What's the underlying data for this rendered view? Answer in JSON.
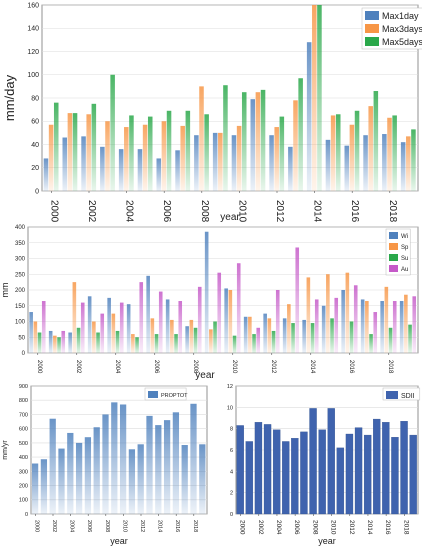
{
  "chart_data": [
    {
      "type": "bar",
      "x": [
        2000,
        2001,
        2002,
        2003,
        2004,
        2005,
        2006,
        2007,
        2008,
        2009,
        2010,
        2011,
        2012,
        2013,
        2014,
        2015,
        2016,
        2017,
        2018,
        2019
      ],
      "series": [
        {
          "name": "Max1day",
          "values": [
            28,
            46,
            47,
            38,
            36,
            36,
            28,
            35,
            48,
            50,
            48,
            79,
            48,
            38,
            128,
            44,
            39,
            48,
            49,
            42
          ]
        },
        {
          "name": "Max3days",
          "values": [
            57,
            67,
            66,
            60,
            55,
            57,
            60,
            56,
            90,
            50,
            56,
            85,
            55,
            78,
            160,
            65,
            57,
            73,
            63,
            47
          ]
        },
        {
          "name": "Max5days",
          "values": [
            76,
            67,
            75,
            100,
            65,
            64,
            69,
            69,
            66,
            91,
            85,
            87,
            64,
            97,
            160,
            66,
            69,
            86,
            65,
            53
          ]
        }
      ],
      "ylabel": "mm/day",
      "xlabel": "year",
      "ylim": [
        0,
        160
      ],
      "yticks": [
        0,
        20,
        40,
        60,
        80,
        100,
        120,
        140,
        160
      ],
      "xticks": [
        "2000",
        "2002",
        "2004",
        "2006",
        "2008",
        "2010",
        "2012",
        "2014",
        "2016",
        "2018"
      ],
      "legend": "top-right",
      "colors": {
        "Max1day": "#4f81bd",
        "Max3days": "#f79646",
        "Max5days": "#2aa84a"
      },
      "grid": true
    },
    {
      "type": "bar",
      "x": [
        2000,
        2001,
        2002,
        2003,
        2004,
        2005,
        2006,
        2007,
        2008,
        2009,
        2010,
        2011,
        2012,
        2013,
        2014,
        2015,
        2016,
        2017,
        2018,
        2019
      ],
      "series": [
        {
          "name": "Wi",
          "values": [
            130,
            70,
            65,
            180,
            175,
            155,
            245,
            170,
            85,
            385,
            205,
            115,
            125,
            110,
            105,
            150,
            200,
            170,
            165,
            165
          ]
        },
        {
          "name": "Sp",
          "values": [
            100,
            55,
            225,
            100,
            125,
            60,
            110,
            105,
            105,
            75,
            200,
            115,
            110,
            155,
            240,
            250,
            255,
            165,
            210,
            185
          ]
        },
        {
          "name": "Su",
          "values": [
            65,
            50,
            80,
            65,
            70,
            50,
            60,
            60,
            80,
            100,
            55,
            60,
            70,
            95,
            95,
            110,
            100,
            60,
            80,
            90
          ]
        },
        {
          "name": "Au",
          "values": [
            165,
            70,
            160,
            125,
            160,
            225,
            195,
            165,
            210,
            255,
            285,
            80,
            200,
            335,
            170,
            175,
            215,
            130,
            165,
            180
          ]
        }
      ],
      "ylabel": "mm",
      "xlabel": "year",
      "ylim": [
        0,
        400
      ],
      "yticks": [
        0,
        50,
        100,
        150,
        200,
        250,
        300,
        350,
        400
      ],
      "xticks": [
        "2000",
        "2002",
        "2004",
        "2006",
        "2008",
        "2010",
        "2012",
        "2014",
        "2016",
        "2018"
      ],
      "legend": "top-right",
      "colors": {
        "Wi": "#4f81bd",
        "Sp": "#f79646",
        "Su": "#2aa84a",
        "Au": "#c55ac8"
      },
      "grid": true
    },
    {
      "type": "bar",
      "x": [
        2000,
        2001,
        2002,
        2003,
        2004,
        2005,
        2006,
        2007,
        2008,
        2009,
        2010,
        2011,
        2012,
        2013,
        2014,
        2015,
        2016,
        2017,
        2018,
        2019
      ],
      "series": [
        {
          "name": "PROPTOT",
          "values": [
            355,
            385,
            670,
            460,
            570,
            500,
            540,
            610,
            700,
            785,
            770,
            455,
            490,
            690,
            625,
            660,
            715,
            485,
            775,
            490
          ]
        }
      ],
      "ylabel": "mm/yr",
      "xlabel": "year",
      "ylim": [
        0,
        900
      ],
      "yticks": [
        0,
        100,
        200,
        300,
        400,
        500,
        600,
        700,
        800,
        900
      ],
      "xticks": [
        "2000",
        "2002",
        "2004",
        "2006",
        "2008",
        "2010",
        "2012",
        "2014",
        "2016",
        "2018"
      ],
      "legend": "top-right",
      "colors": {
        "PROPTOT": "#4f81bd"
      },
      "grid": true
    },
    {
      "type": "bar",
      "x": [
        2000,
        2001,
        2002,
        2003,
        2004,
        2005,
        2006,
        2007,
        2008,
        2009,
        2010,
        2011,
        2012,
        2013,
        2014,
        2015,
        2016,
        2017,
        2018,
        2019
      ],
      "series": [
        {
          "name": "SDII",
          "values": [
            8.3,
            6.8,
            8.6,
            8.4,
            7.9,
            6.8,
            7.1,
            7.7,
            9.9,
            7.9,
            9.9,
            6.2,
            7.5,
            8.1,
            7.4,
            8.9,
            8.6,
            7.2,
            8.7,
            7.4
          ]
        }
      ],
      "xlabel": "year",
      "ylim": [
        0,
        12
      ],
      "yticks": [
        0,
        2,
        4,
        6,
        8,
        10,
        12
      ],
      "xticks": [
        "2000",
        "2002",
        "2004",
        "2006",
        "2008",
        "2010",
        "2012",
        "2014",
        "2016",
        "2018"
      ],
      "legend": "top-right",
      "colors": {
        "SDII": "#3f63ae"
      },
      "grid": true
    }
  ]
}
